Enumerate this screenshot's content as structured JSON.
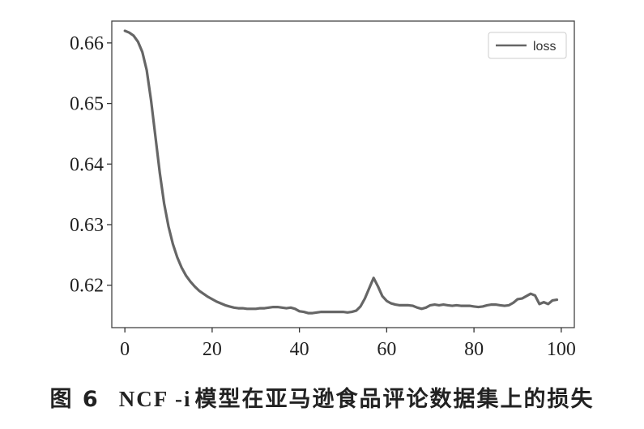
{
  "caption": {
    "figure_number": "图 6",
    "model_name": "NCF -i",
    "text": "模型在亚马逊食品评论数据集上的损失"
  },
  "chart_data": {
    "type": "line",
    "title": "",
    "xlabel": "",
    "ylabel": "",
    "xlim": [
      -3,
      103
    ],
    "ylim": [
      0.613,
      0.6636
    ],
    "x_ticks": [
      0,
      20,
      40,
      60,
      80,
      100
    ],
    "x_tick_labels": [
      "0",
      "20",
      "40",
      "60",
      "80",
      "100"
    ],
    "y_ticks": [
      0.62,
      0.63,
      0.64,
      0.65,
      0.66
    ],
    "y_tick_labels": [
      "0.62",
      "0.63",
      "0.64",
      "0.65",
      "0.66"
    ],
    "grid": false,
    "legend": {
      "position": "top-right",
      "entries": [
        "loss"
      ]
    },
    "series": [
      {
        "name": "loss",
        "color": "#666666",
        "x": [
          0,
          1,
          2,
          3,
          4,
          5,
          6,
          7,
          8,
          9,
          10,
          11,
          12,
          13,
          14,
          15,
          16,
          17,
          18,
          19,
          20,
          21,
          22,
          23,
          24,
          25,
          26,
          27,
          28,
          29,
          30,
          31,
          32,
          33,
          34,
          35,
          36,
          37,
          38,
          39,
          40,
          41,
          42,
          43,
          44,
          45,
          46,
          47,
          48,
          49,
          50,
          51,
          52,
          53,
          54,
          55,
          56,
          57,
          58,
          59,
          60,
          61,
          62,
          63,
          64,
          65,
          66,
          67,
          68,
          69,
          70,
          71,
          72,
          73,
          74,
          75,
          76,
          77,
          78,
          79,
          80,
          81,
          82,
          83,
          84,
          85,
          86,
          87,
          88,
          89,
          90,
          91,
          92,
          93,
          94,
          95,
          96,
          97,
          98,
          99
        ],
        "values": [
          0.662,
          0.6617,
          0.6612,
          0.6602,
          0.6585,
          0.6555,
          0.6505,
          0.6445,
          0.6385,
          0.6335,
          0.6297,
          0.6268,
          0.6246,
          0.6229,
          0.6216,
          0.6206,
          0.6198,
          0.6191,
          0.6186,
          0.6181,
          0.6177,
          0.6173,
          0.617,
          0.6167,
          0.6165,
          0.6163,
          0.6162,
          0.6162,
          0.6161,
          0.6161,
          0.6161,
          0.6162,
          0.6162,
          0.6163,
          0.6164,
          0.6164,
          0.6163,
          0.6162,
          0.6163,
          0.6161,
          0.6157,
          0.6156,
          0.6154,
          0.6154,
          0.6155,
          0.6156,
          0.6156,
          0.6156,
          0.6156,
          0.6156,
          0.6156,
          0.6155,
          0.6156,
          0.6158,
          0.6165,
          0.6178,
          0.6195,
          0.6212,
          0.6198,
          0.6182,
          0.6174,
          0.617,
          0.6168,
          0.6167,
          0.6167,
          0.6167,
          0.6166,
          0.6163,
          0.6161,
          0.6163,
          0.6167,
          0.6168,
          0.6167,
          0.6168,
          0.6167,
          0.6166,
          0.6167,
          0.6166,
          0.6166,
          0.6166,
          0.6165,
          0.6164,
          0.6165,
          0.6167,
          0.6168,
          0.6168,
          0.6167,
          0.6166,
          0.6167,
          0.6171,
          0.6177,
          0.6178,
          0.6182,
          0.6186,
          0.6183,
          0.6169,
          0.6172,
          0.6169,
          0.6175,
          0.6176
        ]
      }
    ]
  }
}
